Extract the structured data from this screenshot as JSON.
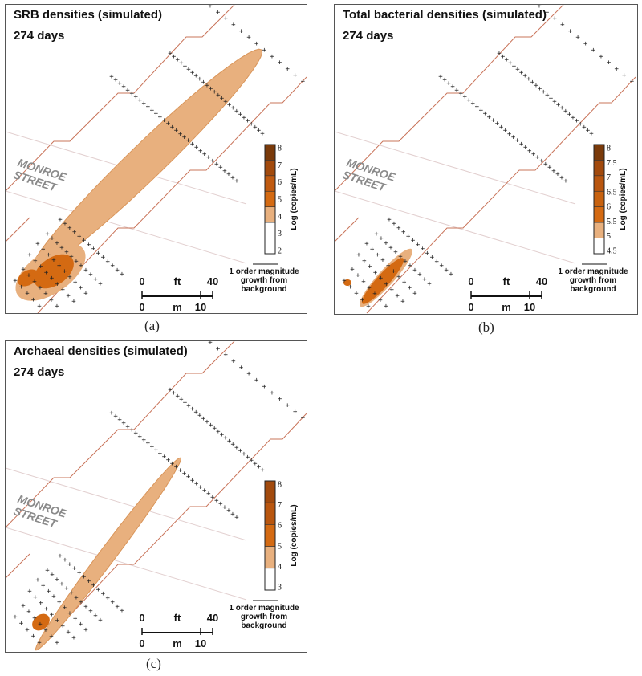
{
  "panels": [
    {
      "title": "SRB densities (simulated)",
      "days": "274 days",
      "street": [
        "MONROE",
        "STREET"
      ],
      "legend": {
        "title": "Log (copies/mL)",
        "ticks": [
          "2",
          "3",
          "4",
          "5",
          "6",
          "7",
          "8"
        ],
        "colors": [
          "#ffffff",
          "#ffffff",
          "#e8b07e",
          "#d46a12",
          "#c05a10",
          "#a24a0d",
          "#7a3a0a"
        ]
      },
      "note": [
        "1 order magnitude",
        "growth from",
        "background"
      ],
      "scale": {
        "ft_label": "ft",
        "ft_0": "0",
        "ft_max": "40",
        "m_label": "m",
        "m_0": "0",
        "m_max": "10"
      },
      "caption": "(a)"
    },
    {
      "title": "Total bacterial densities (simulated)",
      "days": "274 days",
      "street": [
        "MONROE",
        "STREET"
      ],
      "legend": {
        "title": "Log (copies/mL)",
        "ticks": [
          "4.5",
          "5",
          "5.5",
          "6",
          "6.5",
          "7",
          "7.5",
          "8"
        ],
        "colors": [
          "#ffffff",
          "#e8b07e",
          "#d46a12",
          "#c8620f",
          "#b9560f",
          "#a24a0d",
          "#7a3a0a"
        ]
      },
      "note": [
        "1 order magnitude",
        "growth from",
        "background"
      ],
      "scale": {
        "ft_label": "ft",
        "ft_0": "0",
        "ft_max": "40",
        "m_label": "m",
        "m_0": "0",
        "m_max": "10"
      },
      "caption": "(b)"
    },
    {
      "title": "Archaeal densities (simulated)",
      "days": "274 days",
      "street": [
        "MONROE",
        "STREET"
      ],
      "legend": {
        "title": "Log (copies/mL)",
        "ticks": [
          "3",
          "4",
          "5",
          "6",
          "7",
          "8"
        ],
        "colors": [
          "#ffffff",
          "#e8b07e",
          "#d46a12",
          "#b9560f",
          "#a24a0d"
        ]
      },
      "note": [
        "1 order magnitude",
        "growth from",
        "background"
      ],
      "scale": {
        "ft_label": "ft",
        "ft_0": "0",
        "ft_max": "40",
        "m_label": "m",
        "m_0": "0",
        "m_max": "10"
      },
      "caption": "(c)"
    }
  ],
  "well_marker": "+"
}
